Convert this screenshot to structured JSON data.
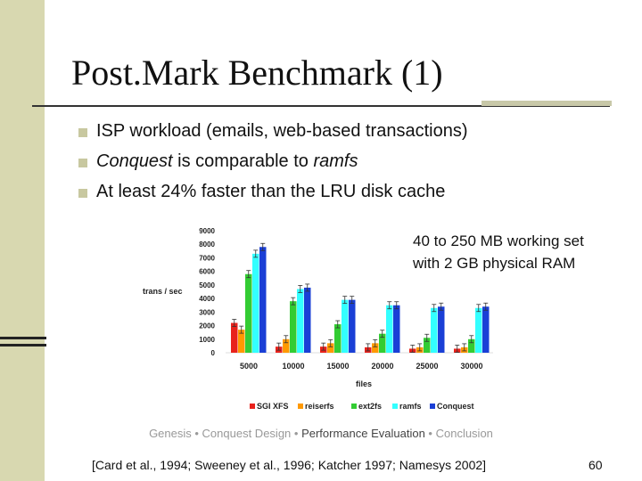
{
  "slide": {
    "title": "Post.Mark Benchmark (1)",
    "bullets": [
      {
        "prefix": "",
        "em": "",
        "suffix": "ISP workload (emails, web-based transactions)"
      },
      {
        "prefix": "",
        "em": "Conquest",
        "suffix": " is comparable to ",
        "em2": "ramfs"
      },
      {
        "prefix": "",
        "em": "",
        "suffix": "At least 24% faster than the LRU disk cache"
      }
    ],
    "note_line1": "40 to 250 MB working set",
    "note_line2": "with 2 GB physical RAM",
    "footer": {
      "items": [
        "Genesis",
        "Conquest Design",
        "Performance Evaluation",
        "Conclusion"
      ],
      "separator": " • ",
      "current_index": 2
    },
    "citation": "[Card et al., 1994; Sweeney et al., 1996; Katcher 1997; Namesys 2002]",
    "page_number": "60"
  },
  "colors": {
    "band": "#d8d8b0",
    "bullet": "#c8c8a0"
  },
  "chart_data": {
    "type": "bar",
    "categories": [
      "5000",
      "10000",
      "15000",
      "20000",
      "25000",
      "30000"
    ],
    "xlabel": "files",
    "ylabel": "trans / sec",
    "ylim": [
      0,
      9000
    ],
    "yticks": [
      0,
      1000,
      2000,
      3000,
      4000,
      5000,
      6000,
      7000,
      8000,
      9000
    ],
    "error_bars": true,
    "legend_position": "bottom",
    "series": [
      {
        "name": "SGI XFS",
        "color": "#e8221c",
        "values": [
          2200,
          450,
          450,
          400,
          300,
          300
        ]
      },
      {
        "name": "reiserfs",
        "color": "#ff9900",
        "values": [
          1700,
          1000,
          700,
          700,
          400,
          400
        ]
      },
      {
        "name": "ext2fs",
        "color": "#33cc33",
        "values": [
          5800,
          3800,
          2100,
          1400,
          1100,
          1000
        ]
      },
      {
        "name": "ramfs",
        "color": "#33ffff",
        "values": [
          7300,
          4700,
          3900,
          3500,
          3300,
          3300
        ]
      },
      {
        "name": "Conquest",
        "color": "#1a3fd6",
        "values": [
          7800,
          4800,
          3900,
          3500,
          3400,
          3400
        ]
      }
    ]
  }
}
